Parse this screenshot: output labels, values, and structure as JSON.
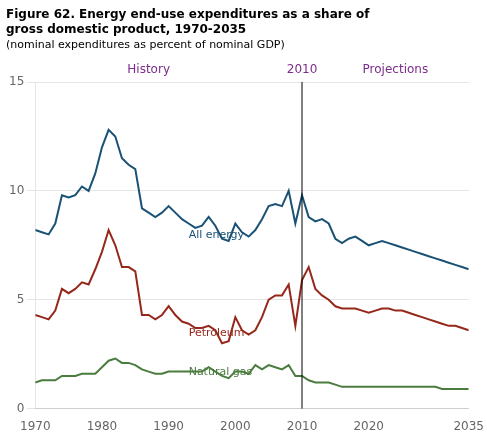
{
  "chart_data": {
    "type": "line",
    "title": [
      "Figure 62. Energy end-use expenditures as a share of",
      "gross domestic product, 1970-2035"
    ],
    "subtitle": "(nominal expenditures as percent of nominal GDP)",
    "x": [
      1970,
      1971,
      1972,
      1973,
      1974,
      1975,
      1976,
      1977,
      1978,
      1979,
      1980,
      1981,
      1982,
      1983,
      1984,
      1985,
      1986,
      1987,
      1988,
      1989,
      1990,
      1991,
      1992,
      1993,
      1994,
      1995,
      1996,
      1997,
      1998,
      1999,
      2000,
      2001,
      2002,
      2003,
      2004,
      2005,
      2006,
      2007,
      2008,
      2009,
      2010,
      2011,
      2012,
      2013,
      2014,
      2015,
      2016,
      2017,
      2018,
      2019,
      2020,
      2021,
      2022,
      2023,
      2024,
      2025,
      2026,
      2027,
      2028,
      2029,
      2030,
      2031,
      2032,
      2033,
      2034,
      2035
    ],
    "series": [
      {
        "name": "All energy",
        "color": "#1a5276",
        "values": [
          8.2,
          8.1,
          8.0,
          8.5,
          9.8,
          9.7,
          9.8,
          10.2,
          10.0,
          10.8,
          12.0,
          12.8,
          12.5,
          11.5,
          11.2,
          11.0,
          9.2,
          9.0,
          8.8,
          9.0,
          9.3,
          9.0,
          8.7,
          8.5,
          8.3,
          8.4,
          8.8,
          8.4,
          7.8,
          7.7,
          8.5,
          8.1,
          7.9,
          8.2,
          8.7,
          9.3,
          9.4,
          9.3,
          10.0,
          8.5,
          9.8,
          8.8,
          8.6,
          8.7,
          8.5,
          7.8,
          7.6,
          7.8,
          7.9,
          7.7,
          7.5,
          7.6,
          7.7,
          7.6,
          7.5,
          7.4,
          7.3,
          7.2,
          7.1,
          7.0,
          6.9,
          6.8,
          6.7,
          6.6,
          6.5,
          6.4
        ]
      },
      {
        "name": "Petroleum",
        "color": "#96281b",
        "values": [
          4.3,
          4.2,
          4.1,
          4.5,
          5.5,
          5.3,
          5.5,
          5.8,
          5.7,
          6.4,
          7.2,
          8.2,
          7.5,
          6.5,
          6.5,
          6.3,
          4.3,
          4.3,
          4.1,
          4.3,
          4.7,
          4.3,
          4.0,
          3.9,
          3.7,
          3.7,
          3.8,
          3.6,
          3.0,
          3.1,
          4.2,
          3.6,
          3.4,
          3.6,
          4.2,
          5.0,
          5.2,
          5.2,
          5.7,
          3.8,
          5.9,
          6.5,
          5.5,
          5.2,
          5.0,
          4.7,
          4.6,
          4.6,
          4.6,
          4.5,
          4.4,
          4.5,
          4.6,
          4.6,
          4.5,
          4.5,
          4.4,
          4.3,
          4.2,
          4.1,
          4.0,
          3.9,
          3.8,
          3.8,
          3.7,
          3.6
        ]
      },
      {
        "name": "Natural gas",
        "color": "#4a7c3f",
        "values": [
          1.2,
          1.3,
          1.3,
          1.3,
          1.5,
          1.5,
          1.5,
          1.6,
          1.6,
          1.6,
          1.9,
          2.2,
          2.3,
          2.1,
          2.1,
          2.0,
          1.8,
          1.7,
          1.6,
          1.6,
          1.7,
          1.7,
          1.7,
          1.7,
          1.7,
          1.7,
          1.9,
          1.7,
          1.5,
          1.4,
          1.7,
          1.7,
          1.6,
          2.0,
          1.8,
          2.0,
          1.9,
          1.8,
          2.0,
          1.5,
          1.5,
          1.3,
          1.2,
          1.2,
          1.2,
          1.1,
          1.0,
          1.0,
          1.0,
          1.0,
          1.0,
          1.0,
          1.0,
          1.0,
          1.0,
          1.0,
          1.0,
          1.0,
          1.0,
          1.0,
          1.0,
          0.9,
          0.9,
          0.9,
          0.9,
          0.9
        ]
      }
    ],
    "annotations": [
      {
        "text": "All energy",
        "x": 1993,
        "y": 7.85,
        "color": "#1a5276"
      },
      {
        "text": "Petroleum",
        "x": 1993,
        "y": 3.35,
        "color": "#96281b"
      },
      {
        "text": "Natural gas",
        "x": 1993,
        "y": 1.55,
        "color": "#4a7c3f"
      }
    ],
    "divider": {
      "x": 2010,
      "before": "History",
      "after": "Projections",
      "label_color": "#7b2c8c"
    },
    "xlim": [
      1970,
      2035
    ],
    "xticks": [
      1970,
      1980,
      1990,
      2000,
      2010,
      2020,
      2035
    ],
    "ylim": [
      0,
      15
    ],
    "yticks": [
      0,
      5,
      10,
      15
    ],
    "grid": "y",
    "marker": "none",
    "line_style": "solid"
  }
}
